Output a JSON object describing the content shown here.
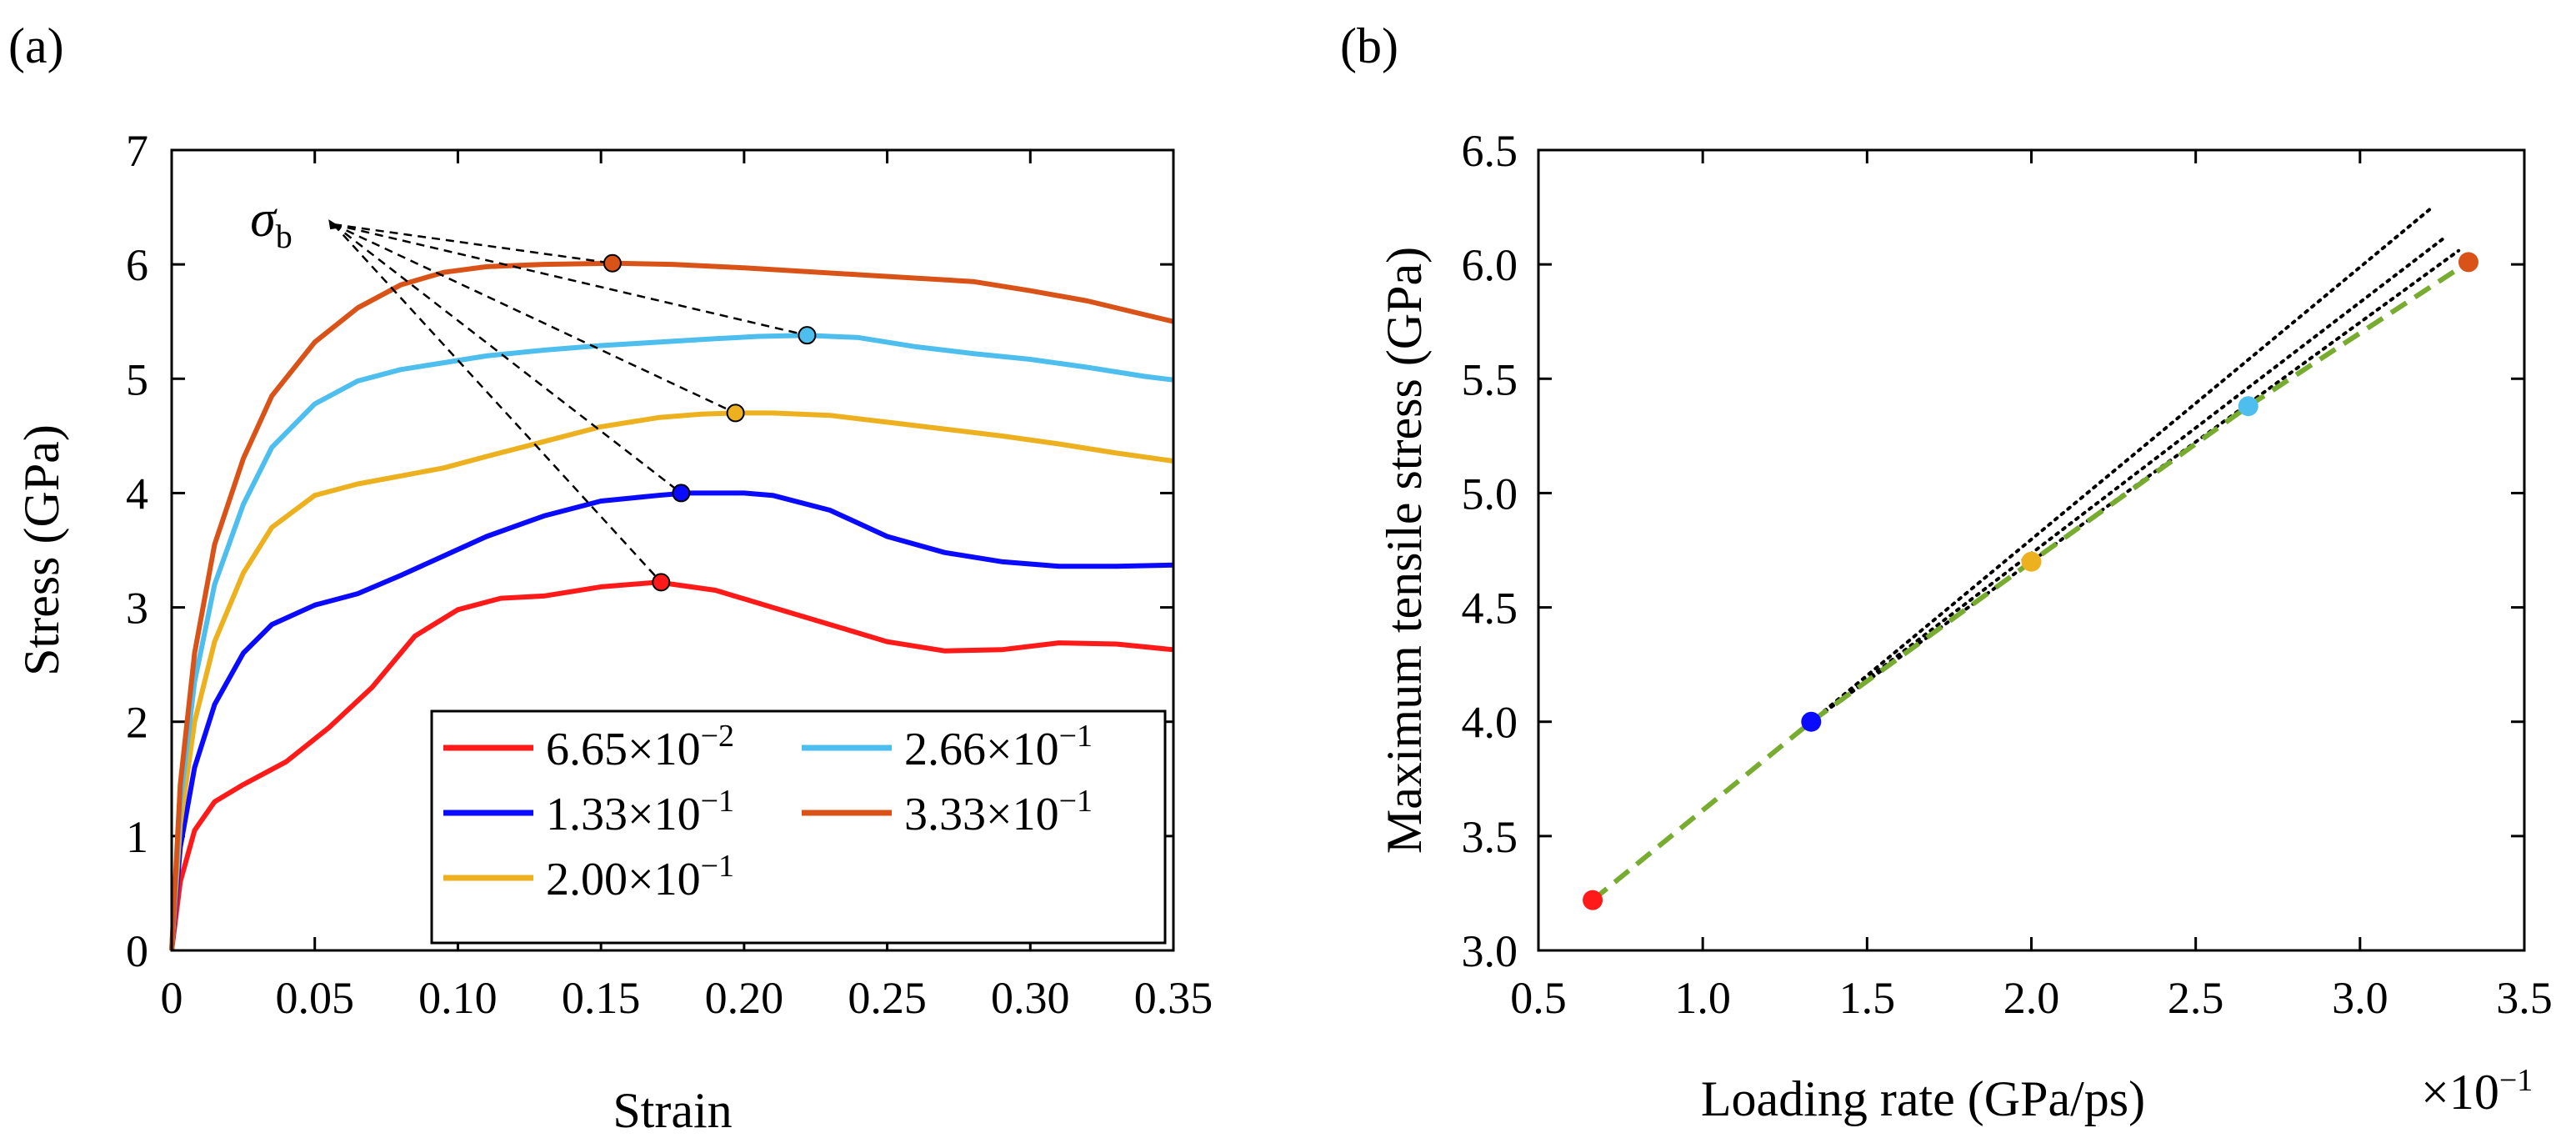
{
  "chart_data": [
    {
      "type": "line",
      "panel_label": "(a)",
      "xlabel": "Strain",
      "ylabel": "Stress (GPa)",
      "xlim": [
        0,
        0.35
      ],
      "ylim": [
        0,
        7
      ],
      "xticks": [
        0,
        0.05,
        0.1,
        0.15,
        0.2,
        0.25,
        0.3,
        0.35
      ],
      "xtick_labels": [
        "0",
        "0.05",
        "0.10",
        "0.15",
        "0.20",
        "0.25",
        "0.30",
        "0.35"
      ],
      "yticks": [
        0,
        1,
        2,
        3,
        4,
        5,
        6,
        7
      ],
      "ytick_labels": [
        "0",
        "1",
        "2",
        "3",
        "4",
        "5",
        "6",
        "7"
      ],
      "legend_position": "bottom-right",
      "annotation": {
        "symbol": "σ",
        "subscript": "b",
        "anchor": [
          0.058,
          6.35
        ]
      },
      "series": [
        {
          "name": "6.65×10",
          "exponent": "−2",
          "color": "#ff1a1a",
          "points": [
            [
              0,
              0
            ],
            [
              0.003,
              0.6
            ],
            [
              0.008,
              1.05
            ],
            [
              0.015,
              1.3
            ],
            [
              0.025,
              1.45
            ],
            [
              0.04,
              1.65
            ],
            [
              0.055,
              1.95
            ],
            [
              0.07,
              2.3
            ],
            [
              0.085,
              2.75
            ],
            [
              0.1,
              2.98
            ],
            [
              0.115,
              3.08
            ],
            [
              0.13,
              3.1
            ],
            [
              0.15,
              3.18
            ],
            [
              0.17,
              3.22
            ],
            [
              0.19,
              3.15
            ],
            [
              0.21,
              3.0
            ],
            [
              0.23,
              2.85
            ],
            [
              0.25,
              2.7
            ],
            [
              0.27,
              2.62
            ],
            [
              0.29,
              2.63
            ],
            [
              0.31,
              2.69
            ],
            [
              0.33,
              2.68
            ],
            [
              0.35,
              2.63
            ]
          ],
          "peak": [
            0.171,
            3.22
          ]
        },
        {
          "name": "1.33×10",
          "exponent": "−1",
          "color": "#0a0aff",
          "points": [
            [
              0,
              0
            ],
            [
              0.003,
              0.9
            ],
            [
              0.008,
              1.6
            ],
            [
              0.015,
              2.15
            ],
            [
              0.025,
              2.6
            ],
            [
              0.035,
              2.85
            ],
            [
              0.05,
              3.02
            ],
            [
              0.065,
              3.12
            ],
            [
              0.08,
              3.28
            ],
            [
              0.095,
              3.45
            ],
            [
              0.11,
              3.62
            ],
            [
              0.13,
              3.8
            ],
            [
              0.15,
              3.93
            ],
            [
              0.17,
              3.98
            ],
            [
              0.18,
              4.0
            ],
            [
              0.2,
              4.0
            ],
            [
              0.21,
              3.98
            ],
            [
              0.23,
              3.85
            ],
            [
              0.25,
              3.62
            ],
            [
              0.27,
              3.48
            ],
            [
              0.29,
              3.4
            ],
            [
              0.31,
              3.36
            ],
            [
              0.33,
              3.36
            ],
            [
              0.35,
              3.37
            ]
          ],
          "peak": [
            0.178,
            4.0
          ]
        },
        {
          "name": "2.00×10",
          "exponent": "−1",
          "color": "#edb120",
          "points": [
            [
              0,
              0
            ],
            [
              0.003,
              1.1
            ],
            [
              0.008,
              2.0
            ],
            [
              0.015,
              2.7
            ],
            [
              0.025,
              3.3
            ],
            [
              0.035,
              3.7
            ],
            [
              0.05,
              3.98
            ],
            [
              0.065,
              4.08
            ],
            [
              0.08,
              4.15
            ],
            [
              0.095,
              4.22
            ],
            [
              0.11,
              4.32
            ],
            [
              0.13,
              4.45
            ],
            [
              0.15,
              4.58
            ],
            [
              0.17,
              4.66
            ],
            [
              0.185,
              4.69
            ],
            [
              0.197,
              4.7
            ],
            [
              0.21,
              4.7
            ],
            [
              0.23,
              4.68
            ],
            [
              0.25,
              4.62
            ],
            [
              0.27,
              4.56
            ],
            [
              0.29,
              4.5
            ],
            [
              0.31,
              4.43
            ],
            [
              0.33,
              4.35
            ],
            [
              0.35,
              4.28
            ]
          ],
          "peak": [
            0.197,
            4.7
          ]
        },
        {
          "name": "2.66×10",
          "exponent": "−1",
          "color": "#4dbeee",
          "points": [
            [
              0,
              0
            ],
            [
              0.003,
              1.3
            ],
            [
              0.008,
              2.35
            ],
            [
              0.015,
              3.2
            ],
            [
              0.025,
              3.9
            ],
            [
              0.035,
              4.4
            ],
            [
              0.05,
              4.78
            ],
            [
              0.065,
              4.98
            ],
            [
              0.08,
              5.08
            ],
            [
              0.095,
              5.14
            ],
            [
              0.11,
              5.2
            ],
            [
              0.13,
              5.25
            ],
            [
              0.15,
              5.29
            ],
            [
              0.17,
              5.32
            ],
            [
              0.19,
              5.35
            ],
            [
              0.205,
              5.37
            ],
            [
              0.222,
              5.38
            ],
            [
              0.24,
              5.36
            ],
            [
              0.26,
              5.28
            ],
            [
              0.28,
              5.22
            ],
            [
              0.3,
              5.17
            ],
            [
              0.32,
              5.1
            ],
            [
              0.34,
              5.02
            ],
            [
              0.35,
              4.99
            ]
          ],
          "peak": [
            0.222,
            5.38
          ]
        },
        {
          "name": "3.33×10",
          "exponent": "−1",
          "color": "#d95319",
          "points": [
            [
              0,
              0
            ],
            [
              0.003,
              1.45
            ],
            [
              0.008,
              2.6
            ],
            [
              0.015,
              3.55
            ],
            [
              0.025,
              4.3
            ],
            [
              0.035,
              4.85
            ],
            [
              0.05,
              5.32
            ],
            [
              0.065,
              5.62
            ],
            [
              0.08,
              5.82
            ],
            [
              0.095,
              5.93
            ],
            [
              0.11,
              5.98
            ],
            [
              0.13,
              6.0
            ],
            [
              0.155,
              6.01
            ],
            [
              0.175,
              6.0
            ],
            [
              0.2,
              5.97
            ],
            [
              0.22,
              5.94
            ],
            [
              0.24,
              5.91
            ],
            [
              0.26,
              5.88
            ],
            [
              0.28,
              5.85
            ],
            [
              0.3,
              5.77
            ],
            [
              0.32,
              5.68
            ],
            [
              0.34,
              5.56
            ],
            [
              0.35,
              5.5
            ]
          ],
          "peak": [
            0.154,
            6.01
          ]
        }
      ]
    },
    {
      "type": "scatter",
      "panel_label": "(b)",
      "xlabel": "Loading rate (GPa/ps)",
      "ylabel": "Maximum tensile stress (GPa)",
      "x_multiplier": "×10",
      "x_multiplier_exponent": "−1",
      "xlim": [
        0.5,
        3.5
      ],
      "ylim": [
        3.0,
        6.5
      ],
      "xticks": [
        0.5,
        1.0,
        1.5,
        2.0,
        2.5,
        3.0,
        3.5
      ],
      "xtick_labels": [
        "0.5",
        "1.0",
        "1.5",
        "2.0",
        "2.5",
        "3.0",
        "3.5"
      ],
      "yticks": [
        3.0,
        3.5,
        4.0,
        4.5,
        5.0,
        5.5,
        6.0,
        6.5
      ],
      "ytick_labels": [
        "3.0",
        "3.5",
        "4.0",
        "4.5",
        "5.0",
        "5.5",
        "6.0",
        "6.5"
      ],
      "points": [
        {
          "x": 0.665,
          "y": 3.22,
          "color": "#ff1a1a"
        },
        {
          "x": 1.33,
          "y": 4.0,
          "color": "#0a0aff"
        },
        {
          "x": 2.0,
          "y": 4.7,
          "color": "#edb120"
        },
        {
          "x": 2.66,
          "y": 5.38,
          "color": "#4dbeee"
        },
        {
          "x": 3.33,
          "y": 6.01,
          "color": "#d95319"
        }
      ],
      "fit_line": {
        "color": "#77ac30",
        "style": "dashed",
        "points": [
          [
            0.665,
            3.22
          ],
          [
            1.33,
            4.0
          ],
          [
            2.0,
            4.7
          ],
          [
            2.66,
            5.38
          ],
          [
            3.33,
            6.01
          ]
        ]
      },
      "tangent_lines": [
        {
          "color": "#000000",
          "style": "dotted",
          "points": [
            [
              1.33,
              4.0
            ],
            [
              3.22,
              6.25
            ]
          ]
        },
        {
          "color": "#000000",
          "style": "dotted",
          "points": [
            [
              1.33,
              4.0
            ],
            [
              3.26,
              6.12
            ]
          ]
        },
        {
          "color": "#000000",
          "style": "dotted",
          "points": [
            [
              1.33,
              4.0
            ],
            [
              3.3,
              6.06
            ]
          ]
        }
      ]
    }
  ]
}
